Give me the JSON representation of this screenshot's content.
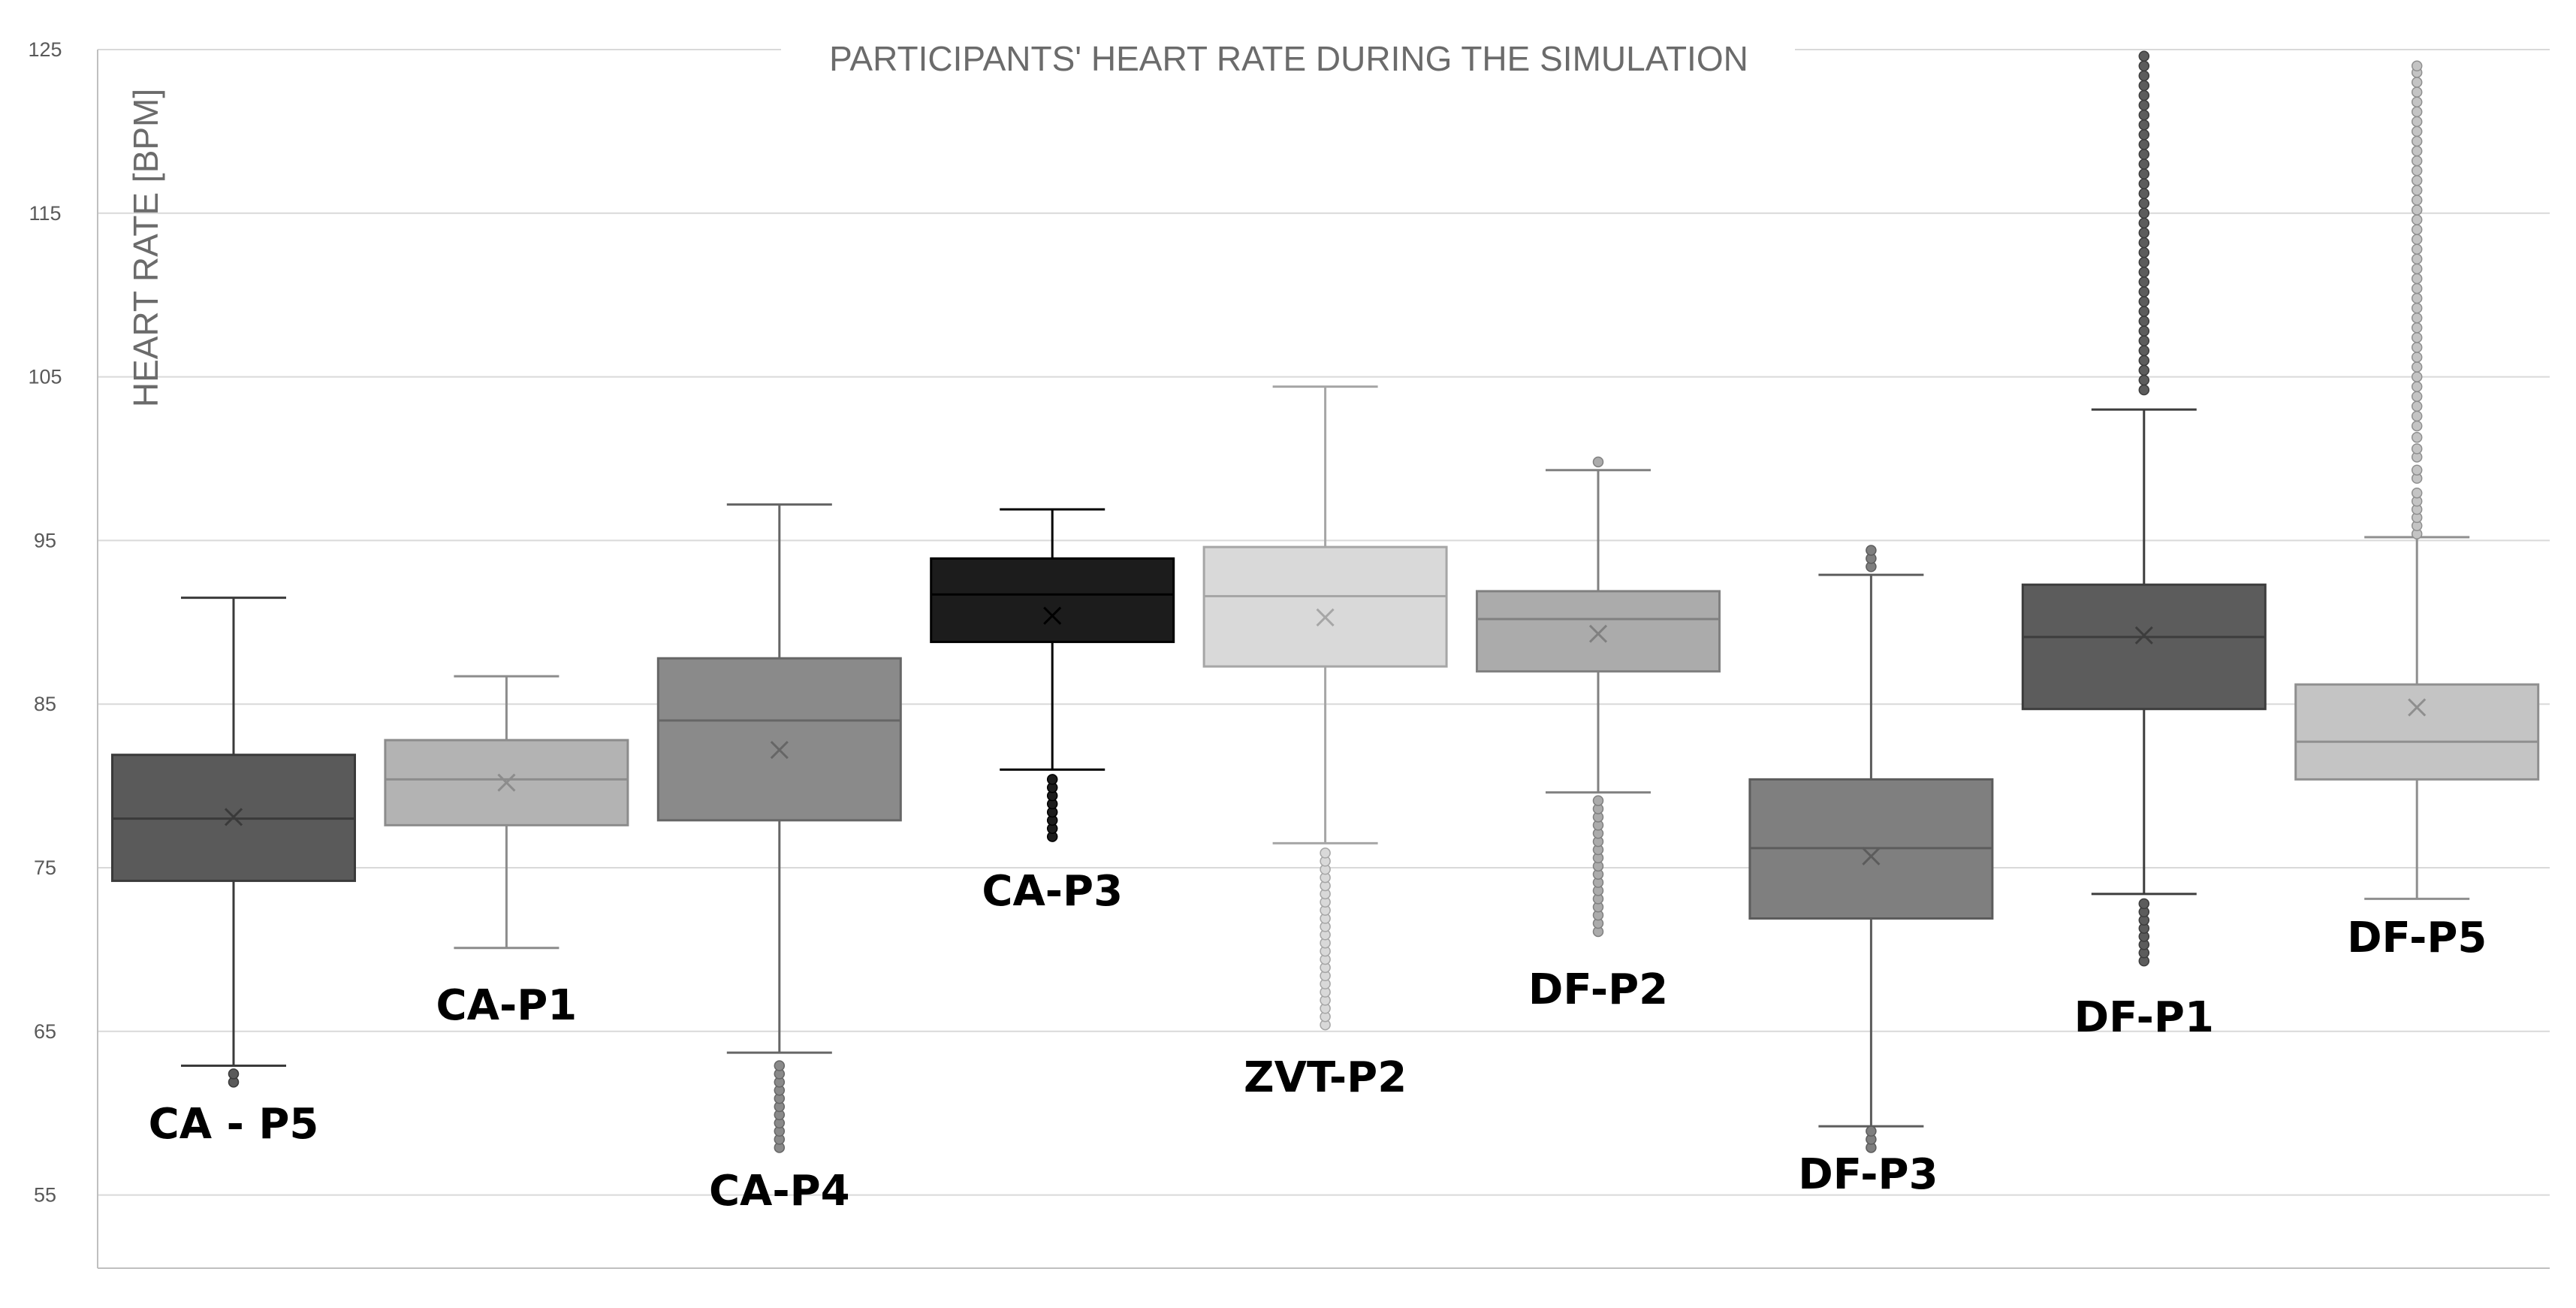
{
  "chart_data": {
    "type": "boxplot",
    "title": "PARTICIPANTS' HEART RATE DURING THE SIMULATION",
    "xlabel": "",
    "ylabel": "HEART RATE  [BPM]",
    "ylim": [
      50,
      125
    ],
    "yticks": [
      55,
      65,
      75,
      85,
      95,
      105,
      115,
      125
    ],
    "grid": true,
    "series": [
      {
        "name": "CA - P5",
        "fill": "#5a5a5a",
        "stroke": "#3a3a3a",
        "min": 62.9,
        "q1": 74.2,
        "median": 78.0,
        "q3": 81.9,
        "max": 91.5,
        "mean": 78.1,
        "outliers": [
          61.9,
          62.4
        ]
      },
      {
        "name": "CA-P1",
        "fill": "#b3b3b3",
        "stroke": "#8c8c8c",
        "min": 70.1,
        "q1": 77.6,
        "median": 80.4,
        "q3": 82.8,
        "max": 86.7,
        "mean": 80.2,
        "outliers": []
      },
      {
        "name": "CA-P4",
        "fill": "#8a8a8a",
        "stroke": "#666666",
        "min": 63.7,
        "q1": 77.9,
        "median": 84.0,
        "q3": 87.8,
        "max": 97.2,
        "mean": 82.2,
        "outliers": [
          57.9,
          58.4,
          58.9,
          59.4,
          59.9,
          60.4,
          60.9,
          61.4,
          61.9,
          62.4,
          62.9
        ]
      },
      {
        "name": "CA-P3",
        "fill": "#1c1c1c",
        "stroke": "#000000",
        "min": 81.0,
        "q1": 88.8,
        "median": 91.7,
        "q3": 93.9,
        "max": 96.9,
        "mean": 90.4,
        "outliers": [
          76.9,
          77.4,
          77.9,
          78.4,
          78.9,
          79.4,
          79.9,
          80.4
        ]
      },
      {
        "name": "ZVT-P2",
        "fill": "#d9d9d9",
        "stroke": "#a6a6a6",
        "min": 76.5,
        "q1": 87.3,
        "median": 91.6,
        "q3": 94.6,
        "max": 104.4,
        "mean": 90.3,
        "outliers": [
          65.4,
          65.9,
          66.4,
          66.9,
          67.4,
          67.9,
          68.4,
          68.9,
          69.4,
          69.9,
          70.4,
          70.9,
          71.4,
          71.9,
          72.4,
          72.9,
          73.4,
          73.9,
          74.4,
          74.9,
          75.4,
          75.9
        ]
      },
      {
        "name": "DF-P2",
        "fill": "#ababab",
        "stroke": "#808080",
        "min": 79.6,
        "q1": 87.0,
        "median": 90.2,
        "q3": 91.9,
        "max": 99.3,
        "mean": 89.3,
        "outliers": [
          71.1,
          71.6,
          72.1,
          72.6,
          73.1,
          73.6,
          74.1,
          74.6,
          75.1,
          75.6,
          76.1,
          76.6,
          77.1,
          77.6,
          78.1,
          78.6,
          79.1,
          99.8
        ]
      },
      {
        "name": "DF-P3",
        "fill": "#7f7f7f",
        "stroke": "#5c5c5c",
        "min": 59.2,
        "q1": 71.9,
        "median": 76.2,
        "q3": 80.4,
        "max": 92.9,
        "mean": 75.7,
        "outliers": [
          57.9,
          58.4,
          58.9,
          93.4,
          93.9,
          94.4
        ]
      },
      {
        "name": "DF-P1",
        "fill": "#5c5c5c",
        "stroke": "#3d3d3d",
        "min": 73.4,
        "q1": 84.7,
        "median": 89.1,
        "q3": 92.3,
        "max": 103.0,
        "mean": 89.2,
        "outliers": [
          69.3,
          69.8,
          70.3,
          70.8,
          71.3,
          71.8,
          72.3,
          72.8,
          104.2,
          104.8,
          105.4,
          106.0,
          106.6,
          107.2,
          107.8,
          108.4,
          109.0,
          109.6,
          110.2,
          110.8,
          111.4,
          112.0,
          112.6,
          113.2,
          113.8,
          114.4,
          115.0,
          115.6,
          116.2,
          116.8,
          117.4,
          118.0,
          118.6,
          119.2,
          119.8,
          120.4,
          121.0,
          121.6,
          122.2,
          122.8,
          123.4,
          124.0,
          124.6
        ]
      },
      {
        "name": "DF-P5",
        "fill": "#c4c4c4",
        "stroke": "#8f8f8f",
        "min": 73.1,
        "q1": 80.4,
        "median": 82.7,
        "q3": 86.2,
        "max": 95.2,
        "mean": 84.8,
        "outliers": [
          95.4,
          95.9,
          96.4,
          96.9,
          97.4,
          97.9,
          98.8,
          99.3,
          100.1,
          100.6,
          101.3,
          102.0,
          102.6,
          103.2,
          103.8,
          104.4,
          105.0,
          105.6,
          106.2,
          106.8,
          107.4,
          108.0,
          108.6,
          109.2,
          109.8,
          110.4,
          111.0,
          111.6,
          112.2,
          112.8,
          113.4,
          114.0,
          114.6,
          115.2,
          115.8,
          116.4,
          117.0,
          117.6,
          118.2,
          118.8,
          119.4,
          120.0,
          120.6,
          121.2,
          121.8,
          122.4,
          123.0,
          123.6,
          124.0
        ]
      }
    ]
  }
}
